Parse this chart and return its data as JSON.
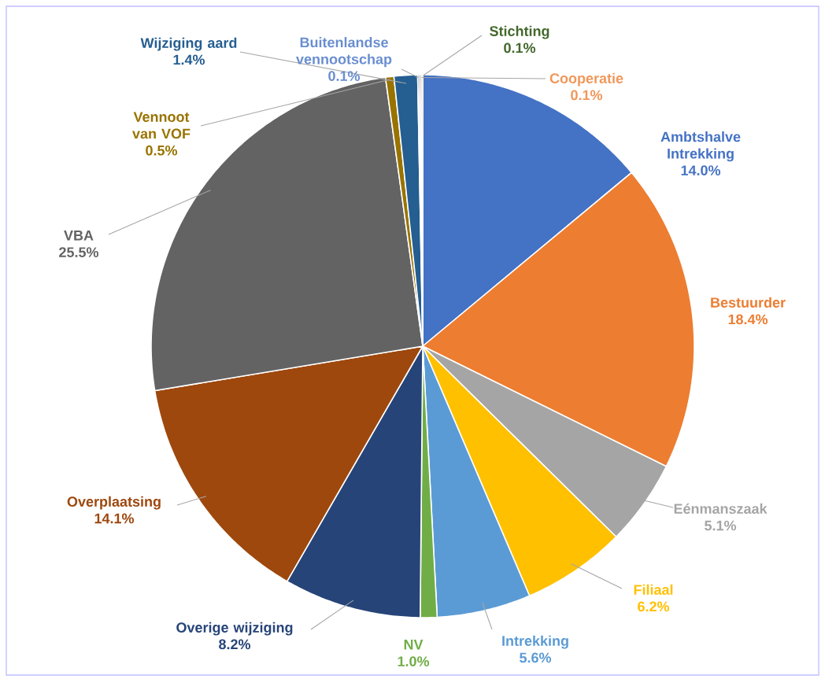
{
  "chart_data": {
    "type": "pie",
    "categories": [
      "Ambtshalve Intrekking",
      "Bestuurder",
      "Eénmanszaak",
      "Filiaal",
      "Intrekking",
      "NV",
      "Overige wijziging",
      "Overplaatsing",
      "VBA",
      "Vennoot van VOF",
      "Wijziging aard",
      "Buitenlandse vennootschap",
      "Stichting",
      "Cooperatie"
    ],
    "values": [
      14.0,
      18.4,
      5.1,
      6.2,
      5.6,
      1.0,
      8.2,
      14.1,
      25.5,
      0.5,
      1.4,
      0.1,
      0.1,
      0.1
    ],
    "value_labels": [
      "14.0%",
      "18.4%",
      "5.1%",
      "6.2%",
      "5.6%",
      "1.0%",
      "8.2%",
      "14.1%",
      "25.5%",
      "0.5%",
      "1.4%",
      "0.1%",
      "0.1%",
      "0.1%"
    ],
    "colors": [
      "#4472c4",
      "#ed7d31",
      "#a5a5a5",
      "#ffc000",
      "#5b9bd5",
      "#70ad47",
      "#264478",
      "#9e480e",
      "#636363",
      "#997300",
      "#255e91",
      "#698ed0",
      "#43682b",
      "#f1975a"
    ]
  }
}
